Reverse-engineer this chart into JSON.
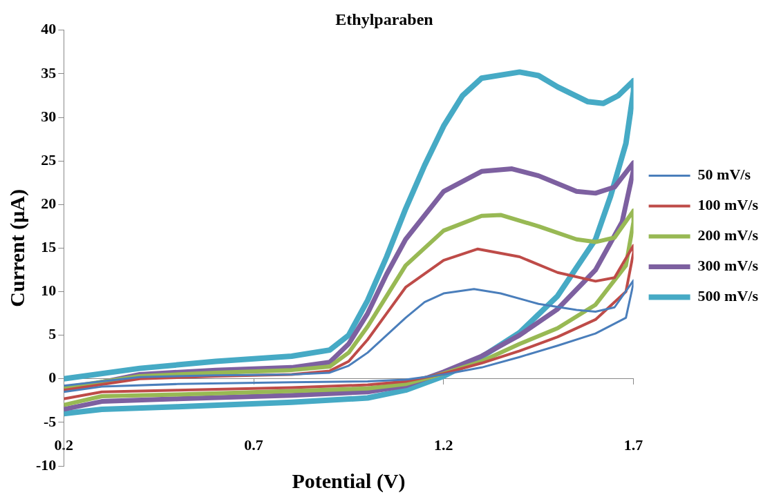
{
  "chart_data": {
    "type": "line",
    "title": "Ethylparaben",
    "xlabel": "Potential (V)",
    "ylabel": "Current (μA)",
    "xlim": [
      0.2,
      1.7
    ],
    "xticks": [
      0.2,
      0.7,
      1.2,
      1.7
    ],
    "ylim": [
      -10,
      40
    ],
    "yticks": [
      -10,
      -5,
      0,
      5,
      10,
      15,
      20,
      25,
      30,
      35,
      40
    ],
    "legend": "right",
    "series": [
      {
        "name": "50 mV/s",
        "color": "#4a7ebb",
        "x": [
          0.2,
          0.4,
          0.6,
          0.8,
          0.9,
          0.95,
          1.0,
          1.05,
          1.1,
          1.15,
          1.2,
          1.28,
          1.35,
          1.45,
          1.55,
          1.6,
          1.65,
          1.7,
          1.7,
          1.68,
          1.6,
          1.5,
          1.4,
          1.3,
          1.2,
          1.1,
          1.0,
          0.8,
          0.5,
          0.3,
          0.2
        ],
        "values": [
          -0.8,
          0.2,
          0.4,
          0.5,
          0.7,
          1.5,
          3,
          5,
          7,
          8.8,
          9.8,
          10.3,
          9.8,
          8.6,
          7.9,
          7.7,
          8.2,
          11.3,
          11,
          7,
          5.2,
          3.8,
          2.5,
          1.3,
          0.5,
          -0.1,
          -0.3,
          -0.4,
          -0.6,
          -0.9,
          -1.5
        ]
      },
      {
        "name": "100 mV/s",
        "color": "#be4b48",
        "x": [
          0.2,
          0.4,
          0.6,
          0.8,
          0.9,
          0.95,
          1.0,
          1.05,
          1.1,
          1.2,
          1.29,
          1.4,
          1.5,
          1.6,
          1.65,
          1.7,
          1.7,
          1.68,
          1.6,
          1.5,
          1.4,
          1.3,
          1.2,
          1.1,
          1.0,
          0.8,
          0.5,
          0.3,
          0.2
        ],
        "values": [
          -1.3,
          0,
          0.3,
          0.5,
          0.9,
          2,
          4.5,
          7.5,
          10.5,
          13.6,
          14.9,
          14,
          12.2,
          11.2,
          11.6,
          15.3,
          14.5,
          10,
          6.8,
          4.8,
          3.2,
          1.8,
          0.6,
          -0.3,
          -0.7,
          -1,
          -1.3,
          -1.5,
          -2.3
        ]
      },
      {
        "name": "200 mV/s",
        "color": "#98b954",
        "x": [
          0.2,
          0.4,
          0.6,
          0.8,
          0.9,
          0.95,
          1.0,
          1.05,
          1.1,
          1.2,
          1.3,
          1.35,
          1.45,
          1.55,
          1.6,
          1.65,
          1.7,
          1.7,
          1.68,
          1.6,
          1.5,
          1.4,
          1.3,
          1.2,
          1.1,
          1.0,
          0.8,
          0.5,
          0.3,
          0.2
        ],
        "values": [
          -1,
          0.3,
          0.7,
          1,
          1.4,
          3,
          6,
          9.5,
          13,
          17,
          18.7,
          18.8,
          17.5,
          16,
          15.7,
          16.2,
          19.3,
          18,
          13,
          8.5,
          5.8,
          4,
          2,
          0.6,
          -0.6,
          -1.1,
          -1.4,
          -1.8,
          -2,
          -3
        ]
      },
      {
        "name": "300 mV/s",
        "color": "#7d60a0",
        "x": [
          0.2,
          0.4,
          0.6,
          0.8,
          0.9,
          0.95,
          1.0,
          1.05,
          1.1,
          1.2,
          1.3,
          1.38,
          1.45,
          1.55,
          1.6,
          1.65,
          1.7,
          1.7,
          1.67,
          1.6,
          1.5,
          1.4,
          1.3,
          1.2,
          1.1,
          1.0,
          0.8,
          0.5,
          0.3,
          0.2
        ],
        "values": [
          -1.3,
          0.5,
          1,
          1.3,
          1.9,
          4,
          7.5,
          12,
          16,
          21.5,
          23.8,
          24.1,
          23.3,
          21.5,
          21.3,
          22,
          24.8,
          24,
          18,
          12.5,
          8,
          5,
          2.6,
          0.8,
          -0.8,
          -1.5,
          -1.9,
          -2.3,
          -2.6,
          -3.5
        ]
      },
      {
        "name": "500 mV/s",
        "color": "#46aac5",
        "x": [
          0.2,
          0.4,
          0.6,
          0.8,
          0.9,
          0.95,
          1.0,
          1.05,
          1.1,
          1.15,
          1.2,
          1.25,
          1.3,
          1.4,
          1.45,
          1.5,
          1.58,
          1.62,
          1.66,
          1.7,
          1.7,
          1.68,
          1.64,
          1.6,
          1.5,
          1.4,
          1.3,
          1.2,
          1.1,
          1.0,
          0.8,
          0.5,
          0.3,
          0.2
        ],
        "values": [
          0,
          1.2,
          2,
          2.6,
          3.3,
          5,
          9,
          14,
          19.5,
          24.5,
          29,
          32.5,
          34.5,
          35.2,
          34.8,
          33.5,
          31.8,
          31.6,
          32.5,
          34.2,
          33,
          27,
          21,
          16,
          9.5,
          5.3,
          2.5,
          0.3,
          -1.3,
          -2.2,
          -2.7,
          -3.2,
          -3.5,
          -4
        ]
      }
    ]
  }
}
